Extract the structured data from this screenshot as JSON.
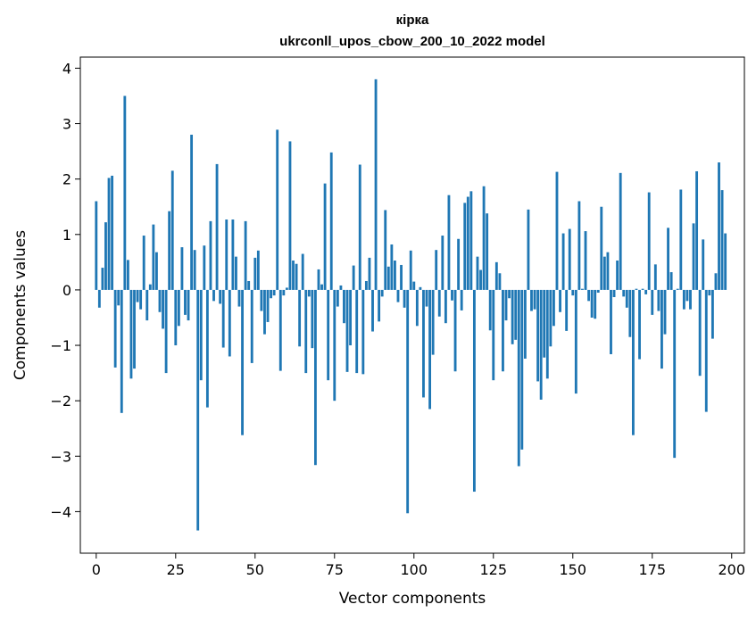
{
  "chart_data": {
    "type": "bar",
    "title": "кірка",
    "subtitle": "ukrconll_upos_cbow_200_10_2022 model",
    "xlabel": "Vector components",
    "ylabel": "Components values",
    "xlim": [
      -5,
      204
    ],
    "ylim": [
      -4.75,
      4.2
    ],
    "xticks": [
      0,
      25,
      50,
      75,
      100,
      125,
      150,
      175,
      200
    ],
    "yticks": [
      -4,
      -3,
      -2,
      -1,
      0,
      1,
      2,
      3,
      4
    ],
    "ytick_labels": [
      "−4",
      "−3",
      "−2",
      "−1",
      "0",
      "1",
      "2",
      "3",
      "4"
    ],
    "grid": false,
    "bar_color": "#1f77b4",
    "values": [
      1.6,
      -0.32,
      0.4,
      1.22,
      2.02,
      2.06,
      -1.4,
      -0.28,
      -2.22,
      3.5,
      0.54,
      -1.6,
      -1.42,
      -0.22,
      -0.35,
      0.98,
      -0.55,
      0.1,
      1.18,
      0.68,
      -0.4,
      -0.7,
      -1.5,
      1.42,
      2.15,
      -1.0,
      -0.65,
      0.77,
      -0.45,
      -0.55,
      2.8,
      0.72,
      -4.34,
      -1.63,
      0.8,
      -2.12,
      1.24,
      -0.2,
      2.27,
      -0.25,
      -1.04,
      1.27,
      -1.2,
      1.27,
      0.6,
      -0.3,
      -2.62,
      1.24,
      0.16,
      -1.32,
      0.58,
      0.71,
      -0.38,
      -0.8,
      -0.58,
      -0.15,
      -0.1,
      2.89,
      -1.46,
      -0.1,
      0.04,
      2.68,
      0.53,
      0.47,
      -1.02,
      0.65,
      -1.5,
      -0.12,
      -1.05,
      -3.16,
      0.37,
      0.1,
      1.92,
      -1.63,
      2.48,
      -2.0,
      -0.3,
      0.08,
      -0.6,
      -1.48,
      -1.0,
      0.44,
      -1.5,
      2.26,
      -1.52,
      0.16,
      0.58,
      -0.75,
      3.8,
      -0.57,
      -0.12,
      1.44,
      0.42,
      0.82,
      0.53,
      -0.22,
      0.45,
      -0.32,
      -4.03,
      0.71,
      0.15,
      -0.65,
      0.05,
      -1.94,
      -0.3,
      -2.15,
      -1.17,
      0.72,
      -0.48,
      0.98,
      -0.6,
      1.71,
      -0.19,
      -1.47,
      0.92,
      -0.37,
      1.57,
      1.68,
      1.78,
      -3.64,
      0.6,
      0.36,
      1.87,
      1.38,
      -0.73,
      -1.63,
      0.5,
      0.3,
      -1.47,
      -0.55,
      -0.15,
      -0.98,
      -0.9,
      -3.18,
      -2.88,
      -1.24,
      1.45,
      -0.38,
      -0.35,
      -1.65,
      -1.98,
      -1.22,
      -1.6,
      -1.02,
      -0.65,
      2.13,
      -0.4,
      1.02,
      -0.74,
      1.1,
      -0.1,
      -1.87,
      1.6,
      0.02,
      1.06,
      -0.2,
      -0.5,
      -0.52,
      -0.05,
      1.5,
      0.6,
      0.68,
      -1.16,
      -0.13,
      0.53,
      2.11,
      -0.12,
      -0.32,
      -0.85,
      -2.62,
      0.02,
      -1.25,
      0.02,
      -0.08,
      1.76,
      -0.45,
      0.46,
      -0.38,
      -1.42,
      -0.8,
      1.12,
      0.32,
      -3.03,
      0.02,
      1.81,
      -0.35,
      -0.2,
      -0.35,
      1.2,
      2.14,
      -1.55,
      0.91,
      -2.2,
      -0.1,
      -0.88,
      0.3,
      2.3,
      1.8,
      1.02
    ]
  }
}
